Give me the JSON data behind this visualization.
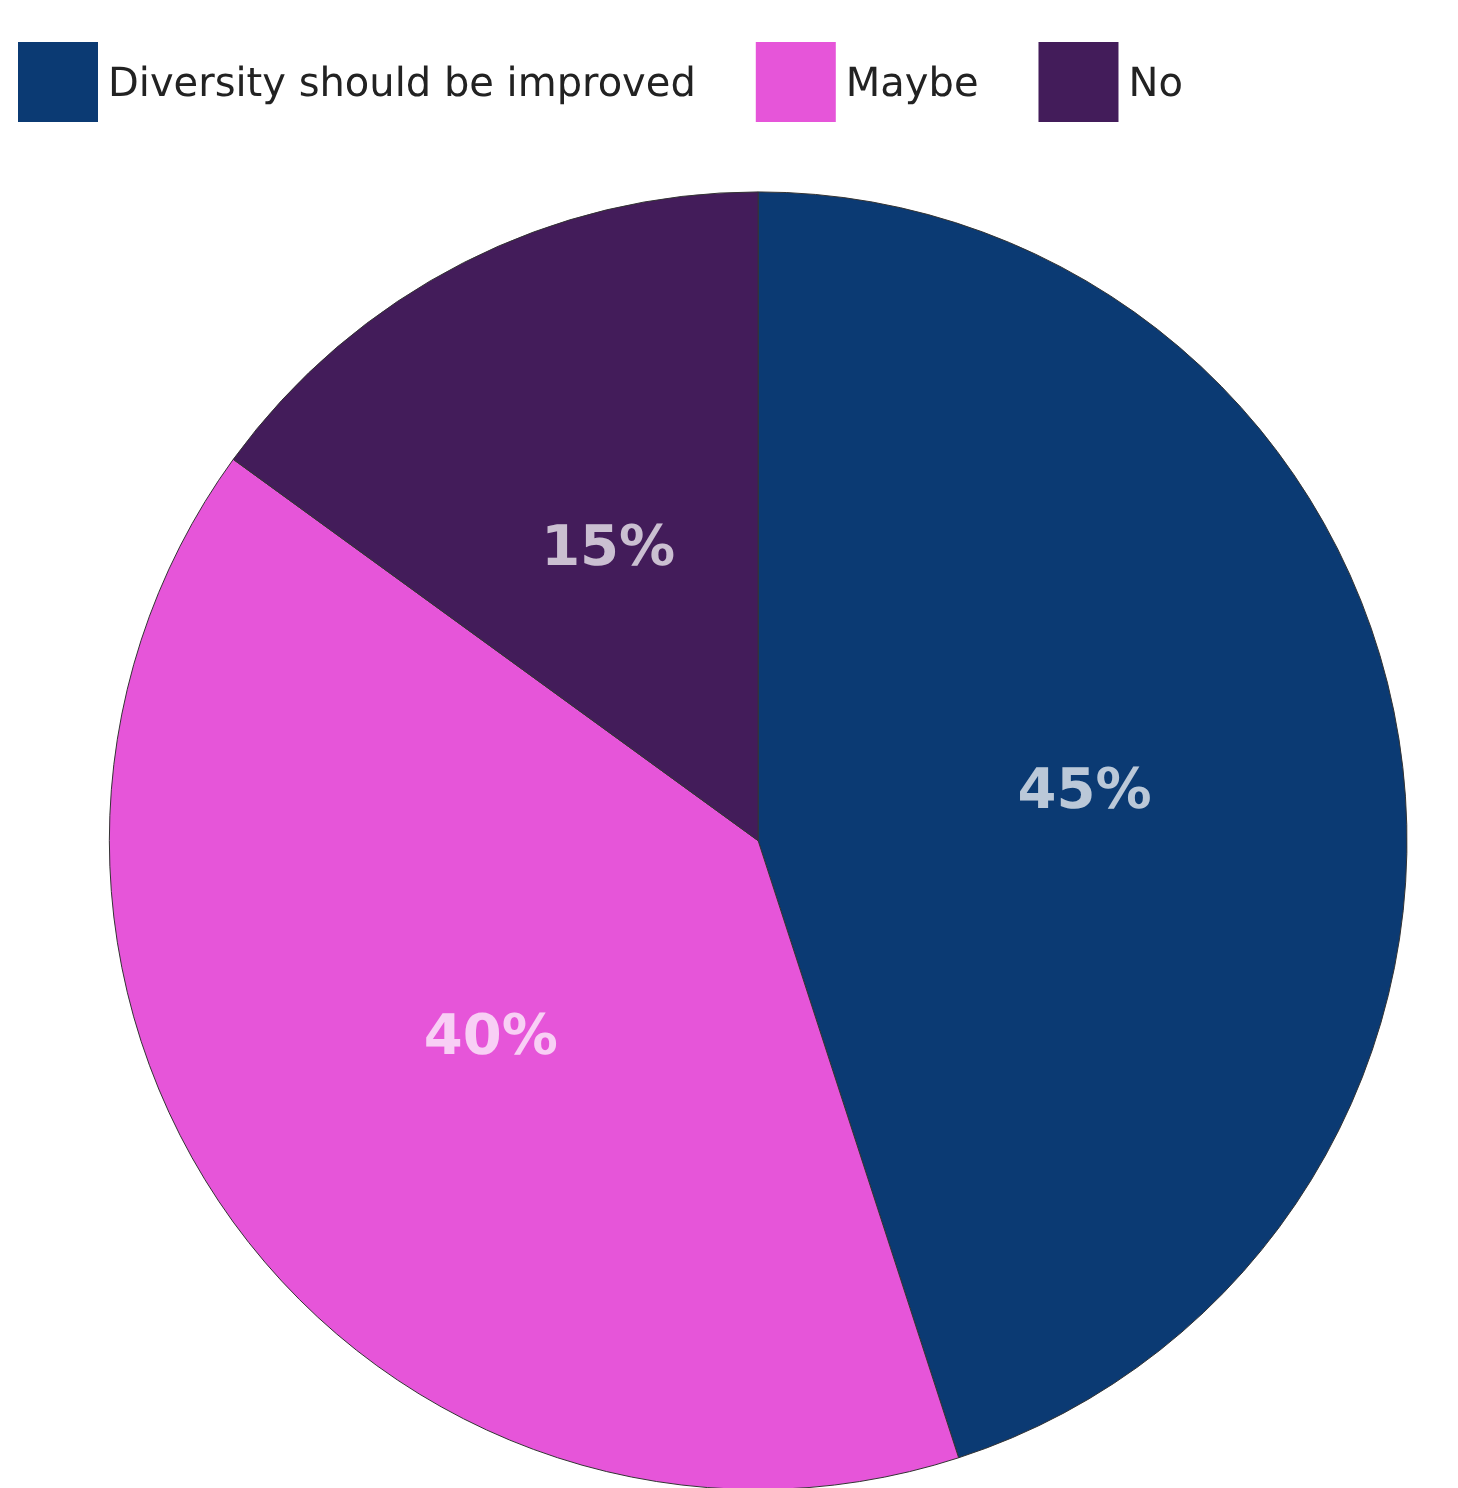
{
  "chart_data": {
    "type": "pie",
    "categories": [
      "Diversity should be improved",
      "Maybe",
      "No"
    ],
    "values": [
      45,
      40,
      15
    ],
    "colors": [
      "#0b3a73",
      "#e655d9",
      "#431c5a"
    ],
    "value_labels": [
      "45%",
      "40%",
      "15%"
    ],
    "legend": "top left"
  }
}
